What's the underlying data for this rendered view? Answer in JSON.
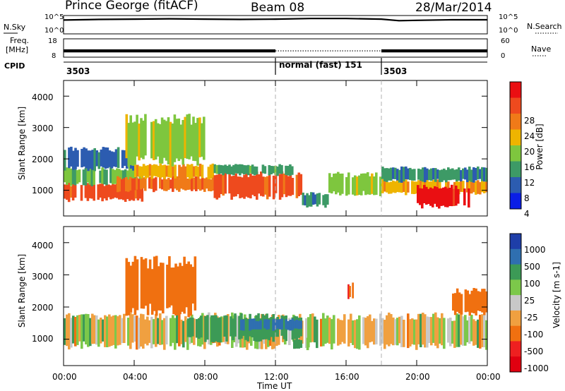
{
  "header": {
    "station": "Prince George (fitACF)",
    "beam": "Beam 08",
    "date": "28/Mar/2014"
  },
  "side_labels": {
    "n_sky": "N.Sky",
    "n_sky_ticks": [
      "10^5",
      "10^0"
    ],
    "n_search": "N.Search",
    "n_search_ticks": [
      "10^5",
      "10^0"
    ],
    "freq_line1": "Freq.",
    "freq_line2": "[MHz]",
    "freq_ticks": [
      "18",
      "8"
    ],
    "nave": "Nave",
    "nave_ticks": [
      "60",
      "0"
    ],
    "cpid": "CPID"
  },
  "cpid_segments": [
    {
      "label": "3503",
      "start_hour": 0
    },
    {
      "label": "normal (fast) 151",
      "start_hour": 12
    },
    {
      "label": "3503",
      "start_hour": 18
    }
  ],
  "x_axis": {
    "title": "Time UT",
    "ticks": [
      "00:00",
      "04:00",
      "08:00",
      "12:00",
      "16:00",
      "20:00",
      "00:00"
    ]
  },
  "panels": {
    "power": {
      "ylabel": "Slant Range [km]",
      "yticks": [
        "1000",
        "2000",
        "3000",
        "4000"
      ],
      "colorbar_label": "Power [dB]",
      "colorbar_ticks": [
        "4",
        "8",
        "12",
        "16",
        "20",
        "24",
        "28"
      ],
      "colors": [
        "#0a1ee6",
        "#2c5cb0",
        "#3d9a66",
        "#7ec63e",
        "#eeb400",
        "#f07a18",
        "#ee4a1e",
        "#ea0f12"
      ]
    },
    "velocity": {
      "ylabel": "Slant Range [km]",
      "yticks": [
        "1000",
        "2000",
        "3000",
        "4000"
      ],
      "colorbar_label": "Velocity [m s-1]",
      "colorbar_ticks": [
        "1000",
        "500",
        "100",
        "25",
        "-25",
        "-100",
        "-500",
        "-1000"
      ],
      "colors": [
        "#1e3ea8",
        "#2f6fb0",
        "#3c9a56",
        "#7cc84a",
        "#c8c8c8",
        "#f0a040",
        "#f07010",
        "#ee2020",
        "#e00010"
      ]
    }
  },
  "chart_data": [
    {
      "type": "line",
      "title": "Prince George (fitACF)",
      "series": [
        {
          "name": "N.Sky"
        },
        {
          "name": "N.Search"
        }
      ],
      "x": [
        0,
        2,
        4,
        6,
        8,
        10,
        12,
        14,
        16,
        18,
        19,
        20,
        22,
        24
      ],
      "y_sky_log10": [
        4.0,
        4.2,
        4.3,
        4.4,
        4.3,
        4.2,
        4.3,
        4.5,
        4.5,
        4.3,
        3.8,
        3.9,
        4.1,
        4.1
      ],
      "ylim_log10": [
        0,
        5
      ],
      "xlabel": "Time UT"
    },
    {
      "type": "line",
      "series": [
        {
          "name": "Freq."
        },
        {
          "name": "Nave"
        }
      ],
      "x": [
        0,
        12,
        12,
        18,
        18,
        24
      ],
      "freq_mhz": [
        11,
        11,
        10.8,
        10.8,
        11,
        11
      ],
      "ylim_freq": [
        8,
        18
      ],
      "ylim_nave": [
        0,
        60
      ]
    },
    {
      "type": "heatmap",
      "title": "Power [dB]",
      "xlabel": "Time UT",
      "ylabel": "Slant Range [km]",
      "xlim": [
        0,
        24
      ],
      "ylim": [
        180,
        4500
      ],
      "clim": [
        0,
        30
      ],
      "blobs": [
        {
          "t0": 0.0,
          "t1": 4.5,
          "r0": 700,
          "r1": 1200,
          "value": 24
        },
        {
          "t0": 0.0,
          "t1": 4.5,
          "r0": 1200,
          "r1": 1700,
          "value": 12
        },
        {
          "t0": 0.0,
          "t1": 4.0,
          "r0": 1700,
          "r1": 2300,
          "value": 6
        },
        {
          "t0": 3.0,
          "t1": 9.0,
          "r0": 1000,
          "r1": 1400,
          "value": 22
        },
        {
          "t0": 4.0,
          "t1": 8.5,
          "r0": 1400,
          "r1": 1800,
          "value": 18
        },
        {
          "t0": 3.5,
          "t1": 8.0,
          "r0": 1900,
          "r1": 3300,
          "value": 14
        },
        {
          "t0": 8.5,
          "t1": 13.5,
          "r0": 800,
          "r1": 1500,
          "value": 24
        },
        {
          "t0": 8.5,
          "t1": 13.0,
          "r0": 1500,
          "r1": 1800,
          "value": 10
        },
        {
          "t0": 13.5,
          "t1": 15.0,
          "r0": 500,
          "r1": 900,
          "value": 8
        },
        {
          "t0": 15.0,
          "t1": 18.0,
          "r0": 900,
          "r1": 1500,
          "value": 14
        },
        {
          "t0": 18.0,
          "t1": 24.0,
          "r0": 900,
          "r1": 1300,
          "value": 18
        },
        {
          "t0": 18.0,
          "t1": 24.0,
          "r0": 1300,
          "r1": 1700,
          "value": 8
        },
        {
          "t0": 20.0,
          "t1": 23.0,
          "r0": 500,
          "r1": 1100,
          "value": 28
        }
      ]
    },
    {
      "type": "heatmap",
      "title": "Velocity [m s-1]",
      "xlabel": "Time UT",
      "ylabel": "Slant Range [km]",
      "xlim": [
        0,
        24
      ],
      "ylim": [
        180,
        4500
      ],
      "clim": [
        -1000,
        1000
      ],
      "blobs": [
        {
          "t0": 0.0,
          "t1": 24.0,
          "r0": 800,
          "r1": 1700,
          "value": 0
        },
        {
          "t0": 3.5,
          "t1": 7.5,
          "r0": 1900,
          "r1": 3400,
          "value": -300
        },
        {
          "t0": 7.0,
          "t1": 13.5,
          "r0": 1000,
          "r1": 1700,
          "value": 250
        },
        {
          "t0": 10.0,
          "t1": 13.5,
          "r0": 1300,
          "r1": 1600,
          "value": 600
        },
        {
          "t0": 13.0,
          "t1": 14.0,
          "r0": 700,
          "r1": 1000,
          "value": 120
        },
        {
          "t0": 16.0,
          "t1": 16.5,
          "r0": 2300,
          "r1": 2700,
          "value": -400
        },
        {
          "t0": 22.0,
          "t1": 24.0,
          "r0": 1800,
          "r1": 2500,
          "value": -300
        }
      ]
    }
  ]
}
